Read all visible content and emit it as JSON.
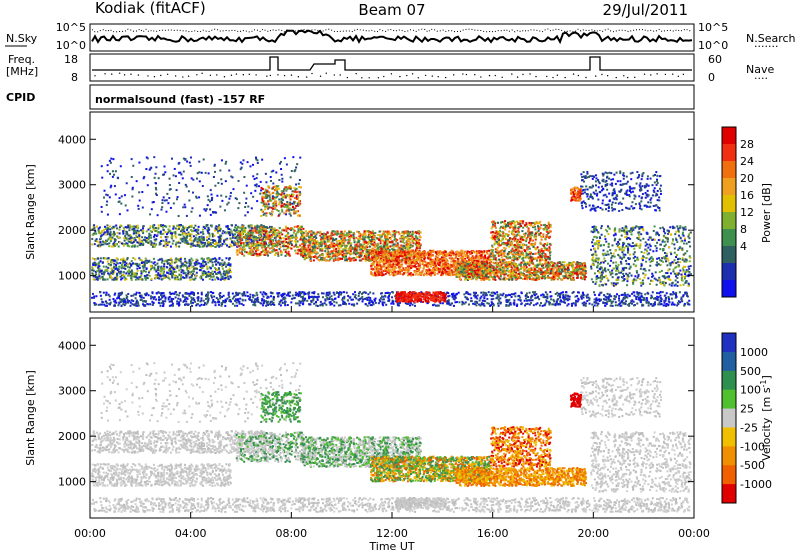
{
  "header": {
    "left": "Kodiak (fitACF)",
    "center": "Beam 07",
    "right": "29/Jul/2011"
  },
  "top_panel": {
    "nsky_label": "N.Sky",
    "nsearch_label": "N.Search",
    "nsearch_dots": "·······",
    "noise_ticks": [
      "10^5",
      "10^0"
    ],
    "freq_label_1": "Freq.",
    "freq_label_2": "[MHz]",
    "freq_ticks": [
      "18",
      "8"
    ],
    "nave_label": "Nave",
    "nave_dots": "····",
    "nave_ticks": [
      "60",
      "0"
    ],
    "cpid_label": "CPID",
    "cpid_text": "normalsound (fast) -157 RF"
  },
  "chart_data": [
    {
      "type": "heatmap",
      "title": "",
      "xlabel": "",
      "ylabel": "Slant Range [km]",
      "x_ticks": [
        "00:00",
        "04:00",
        "08:00",
        "12:00",
        "16:00",
        "20:00",
        "00:00"
      ],
      "y_ticks": [
        1000,
        2000,
        3000,
        4000
      ],
      "ylim": [
        200,
        4600
      ],
      "colorbar": {
        "label": "Power [dB]",
        "ticks": [
          4,
          8,
          12,
          16,
          20,
          24,
          28
        ],
        "colors": [
          "#1010ee",
          "#1d2faf",
          "#2f6060",
          "#3f8f4f",
          "#7fb030",
          "#e0c000",
          "#f0a020",
          "#f07010",
          "#f03010",
          "#e00000"
        ]
      }
    },
    {
      "type": "heatmap",
      "title": "",
      "xlabel": "Time UT",
      "ylabel": "Slant Range [km]",
      "x_ticks": [
        "00:00",
        "04:00",
        "08:00",
        "12:00",
        "16:00",
        "20:00",
        "00:00"
      ],
      "y_ticks": [
        1000,
        2000,
        3000,
        4000
      ],
      "ylim": [
        200,
        4600
      ],
      "colorbar": {
        "label_main": "Velocity",
        "label_unit": "[m s",
        "label_sup": "-1",
        "label_end": "]",
        "ticks": [
          "1000",
          "500",
          "100",
          "25",
          "-25",
          "-100",
          "-500",
          "-1000"
        ],
        "colors": [
          "#2030c0",
          "#2060a0",
          "#2f8f4f",
          "#50c030",
          "#c8c8c8",
          "#f0c000",
          "#f09000",
          "#f06000",
          "#e00000"
        ]
      }
    }
  ]
}
